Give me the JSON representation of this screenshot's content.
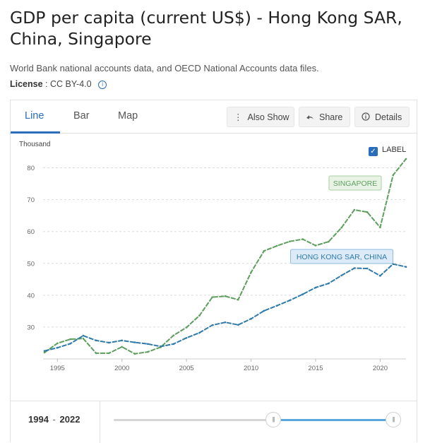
{
  "header": {
    "title": "GDP per capita (current US$) - Hong Kong SAR, China, Singapore",
    "subtitle": "World Bank national accounts data, and OECD National Accounts data files.",
    "license_label": "License",
    "license_value": ": CC BY-4.0"
  },
  "tabs": [
    {
      "label": "Line",
      "active": true
    },
    {
      "label": "Bar",
      "active": false
    },
    {
      "label": "Map",
      "active": false
    }
  ],
  "toolbar": {
    "also_show": "Also Show",
    "share": "Share",
    "details": "Details"
  },
  "chart_options": {
    "label_toggle": "LABEL",
    "label_checked": true
  },
  "range": {
    "start": "1994",
    "separator": "-",
    "end": "2022"
  },
  "chart_data": {
    "type": "line",
    "title": "GDP per capita (current US$) - Hong Kong SAR, China, Singapore",
    "ylabel": "Thousand",
    "xlabel": "",
    "xlim": [
      1994,
      2022
    ],
    "ylim": [
      20,
      85
    ],
    "x_ticks": [
      1995,
      2000,
      2005,
      2010,
      2015,
      2020
    ],
    "y_ticks": [
      30,
      40,
      50,
      60,
      70,
      80
    ],
    "grid": "horizontal-dashed",
    "x": [
      1994,
      1995,
      1996,
      1997,
      1998,
      1999,
      2000,
      2001,
      2002,
      2003,
      2004,
      2005,
      2006,
      2007,
      2008,
      2009,
      2010,
      2011,
      2012,
      2013,
      2014,
      2015,
      2016,
      2017,
      2018,
      2019,
      2020,
      2021,
      2022
    ],
    "series": [
      {
        "name": "SINGAPORE",
        "color": "#5e9e5e",
        "label_bg": "#e8f3e6",
        "label_border": "#a9cfa4",
        "label_color": "#5e9e5e",
        "values": [
          22.0,
          24.9,
          26.2,
          26.4,
          21.8,
          21.8,
          23.8,
          21.6,
          22.2,
          23.7,
          27.4,
          29.9,
          33.6,
          39.4,
          39.7,
          38.6,
          47.2,
          53.9,
          55.5,
          56.9,
          57.6,
          55.6,
          56.8,
          61.2,
          66.8,
          66.1,
          61.3,
          77.7,
          82.8
        ]
      },
      {
        "name": "HONG KONG SAR, CHINA",
        "color": "#2f7aa9",
        "label_bg": "#dcebf7",
        "label_border": "#8dbde2",
        "label_color": "#2f7aa9",
        "values": [
          22.5,
          23.5,
          24.8,
          27.3,
          25.8,
          25.1,
          25.8,
          25.2,
          24.7,
          23.9,
          24.7,
          26.6,
          28.2,
          30.6,
          31.5,
          30.7,
          32.6,
          35.1,
          36.7,
          38.4,
          40.3,
          42.4,
          43.7,
          46.2,
          48.5,
          48.4,
          46.1,
          49.8,
          48.9
        ]
      }
    ]
  }
}
